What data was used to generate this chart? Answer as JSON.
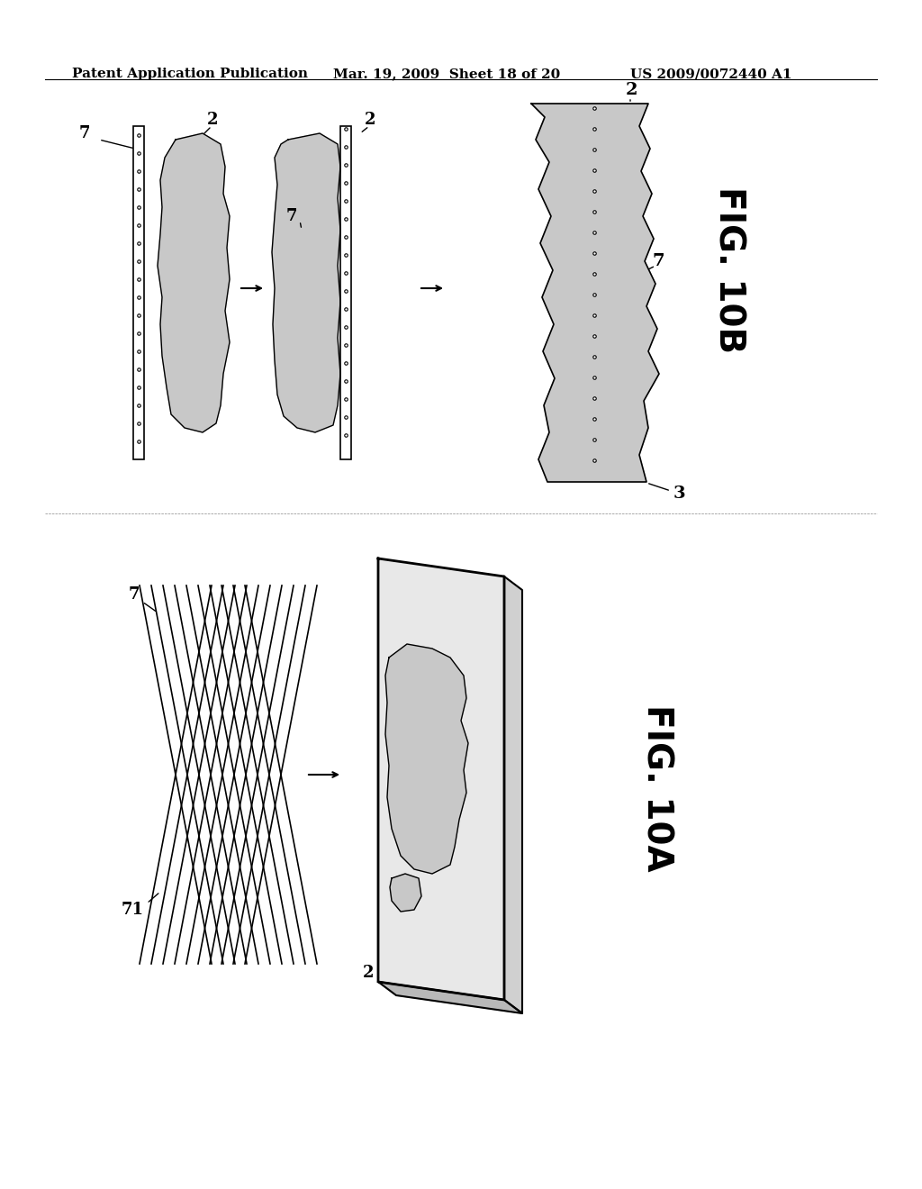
{
  "header_left": "Patent Application Publication",
  "header_mid": "Mar. 19, 2009  Sheet 18 of 20",
  "header_right": "US 2009/0072440 A1",
  "fig10b_label": "FIG. 10B",
  "fig10a_label": "FIG. 10A",
  "bg_color": "#ffffff",
  "line_color": "#000000",
  "fill_color": "#c8c8c8",
  "dark_fill": "#a0a0a0"
}
